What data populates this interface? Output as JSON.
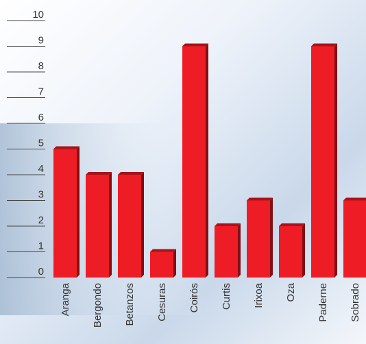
{
  "chart_data": {
    "type": "bar",
    "categories": [
      "Aranga",
      "Bergondo",
      "Betanzos",
      "Cesuras",
      "Coirós",
      "Curtis",
      "Irixoa",
      "Oza",
      "Paderne",
      "Sobrado"
    ],
    "values": [
      5,
      4,
      4,
      1,
      9,
      2,
      3,
      2,
      9,
      3
    ],
    "color": "#ee1c25",
    "ylim": [
      0,
      10
    ],
    "yticks": [
      0,
      1,
      2,
      3,
      4,
      5,
      6,
      7,
      8,
      9,
      10
    ]
  }
}
